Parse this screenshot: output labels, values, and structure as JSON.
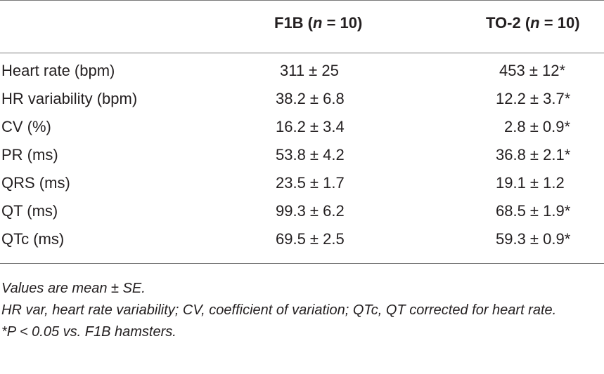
{
  "table": {
    "headers": {
      "col1_name": "F1B",
      "col1_n_label": "n",
      "col1_n_value": "= 10",
      "col2_name": "TO-2",
      "col2_n_label": "n",
      "col2_n_value": "= 10"
    },
    "rows": [
      {
        "label": "Heart rate (bpm)",
        "f1b": "311 ± 25",
        "to2": "453 ± 12*"
      },
      {
        "label": "HR variability (bpm)",
        "f1b": "38.2 ± 6.8",
        "to2": "12.2 ± 3.7*"
      },
      {
        "label": "CV (%)",
        "f1b": "16.2 ± 3.4",
        "to2": "2.8 ± 0.9*"
      },
      {
        "label": "PR (ms)",
        "f1b": "53.8 ± 4.2",
        "to2": "36.8 ± 2.1*"
      },
      {
        "label": "QRS (ms)",
        "f1b": "23.5 ± 1.7",
        "to2": "19.1 ± 1.2"
      },
      {
        "label": "QT (ms)",
        "f1b": "99.3 ± 6.2",
        "to2": "68.5 ± 1.9*"
      },
      {
        "label": "QTc (ms)",
        "f1b": "69.5 ± 2.5",
        "to2": "59.3 ± 0.9*"
      }
    ]
  },
  "notes": {
    "values": "Values are mean ± SE.",
    "abbreviations": "HR var, heart rate variability; CV, coefficient of variation; QTc, QT corrected for heart rate.",
    "significance": "*P < 0.05 vs. F1B hamsters."
  }
}
